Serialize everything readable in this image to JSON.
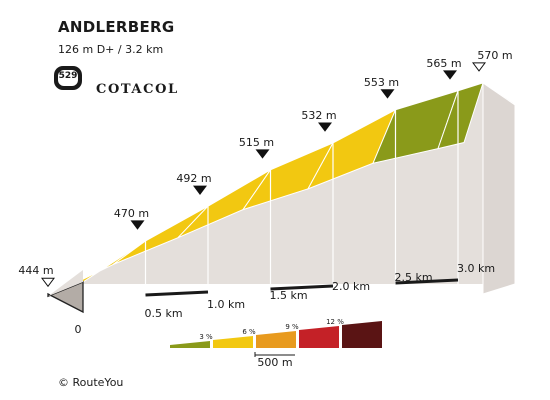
{
  "header": {
    "title": "ANDLERBERG",
    "stats": "126 m D+ / 3.2 km",
    "climb_number": "529",
    "brand": "COTACOL"
  },
  "footer": {
    "copyright_symbol": "©",
    "credit": "RouteYou"
  },
  "chart_data": {
    "type": "area",
    "title": "ANDLERBERG",
    "x_unit": "km",
    "y_unit": "m",
    "xlim": [
      0,
      3.2
    ],
    "distance_ticks": [
      {
        "km": 0,
        "label": "0"
      },
      {
        "km": 0.5,
        "label": "0.5 km"
      },
      {
        "km": 1.0,
        "label": "1.0 km"
      },
      {
        "km": 1.5,
        "label": "1.5 km"
      },
      {
        "km": 2.0,
        "label": "2.0 km"
      },
      {
        "km": 2.5,
        "label": "2.5 km"
      },
      {
        "km": 3.0,
        "label": "3.0 km"
      }
    ],
    "elevation_points": [
      {
        "km": 0,
        "m": 444,
        "label": "444 m",
        "marker": "start"
      },
      {
        "km": 0.5,
        "m": 470,
        "label": "470 m",
        "marker": "point"
      },
      {
        "km": 1.0,
        "m": 492,
        "label": "492 m",
        "marker": "point"
      },
      {
        "km": 1.5,
        "m": 515,
        "label": "515 m",
        "marker": "point"
      },
      {
        "km": 2.0,
        "m": 532,
        "label": "532 m",
        "marker": "point"
      },
      {
        "km": 2.5,
        "m": 553,
        "label": "553 m",
        "marker": "point"
      },
      {
        "km": 3.0,
        "m": 565,
        "label": "565 m",
        "marker": "point"
      },
      {
        "km": 3.2,
        "m": 570,
        "label": "570 m",
        "marker": "end"
      }
    ],
    "segment_gradient_class": [
      "6 %",
      "6 %",
      "6 %",
      "6 %",
      "6 %",
      "3 %",
      "3 %"
    ],
    "gradient_legend": [
      {
        "label": "3 %",
        "color": "#8a9a1a"
      },
      {
        "label": "6 %",
        "color": "#f2c811"
      },
      {
        "label": "9 %",
        "color": "#e89a1e"
      },
      {
        "label": "12 %",
        "color": "#c42127"
      },
      {
        "label": "",
        "color": "#5a1414"
      }
    ],
    "scale_bar_label": "500 m"
  }
}
